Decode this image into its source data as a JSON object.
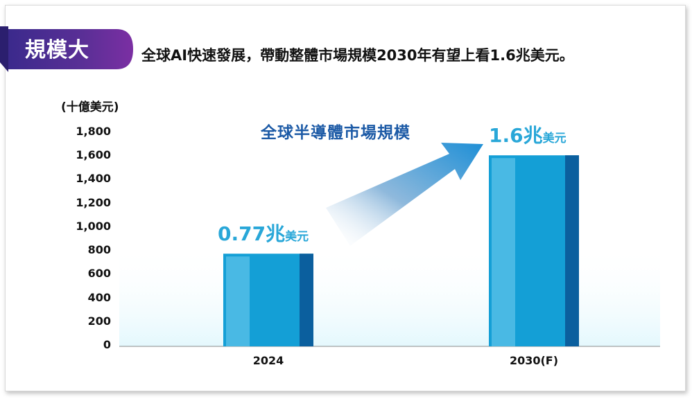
{
  "tag": {
    "label": "規模大"
  },
  "headline": "全球AI快速發展，帶動整體市場規模2030年有望上看1.6兆美元。",
  "chart_data": {
    "type": "bar",
    "title": "全球半導體市場規模",
    "ylabel": "(十億美元)",
    "categories": [
      "2024",
      "2030(F)"
    ],
    "values": [
      770,
      1600
    ],
    "ylim": [
      0,
      1800
    ],
    "yticks": [
      "0",
      "200",
      "400",
      "600",
      "800",
      "1,000",
      "1,200",
      "1,400",
      "1,600",
      "1,800"
    ],
    "data_labels": [
      {
        "value": "0.77兆",
        "unit": "美元"
      },
      {
        "value": "1.6兆",
        "unit": "美元"
      }
    ],
    "grid": false,
    "colors": {
      "bar": "#149fd6",
      "bar_light": "#5fc4ea",
      "bar_dark": "#0b5f9e",
      "arrow": "#1e8fd6"
    }
  }
}
